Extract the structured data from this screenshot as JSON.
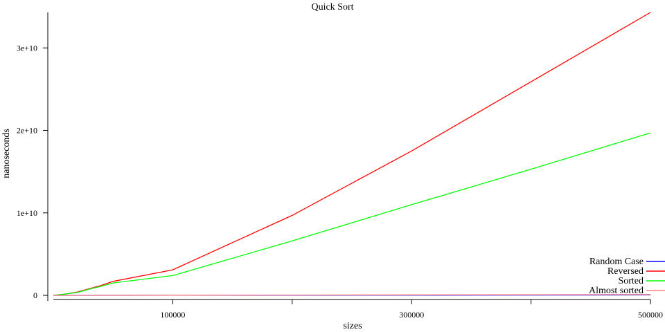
{
  "chart_data": {
    "type": "line",
    "title": "Quick Sort",
    "xlabel": "sizes",
    "ylabel": "nanoseconds",
    "xlim": [
      0,
      500000
    ],
    "ylim": [
      -500000000,
      34300000000
    ],
    "x_ticks": [
      100000,
      300000,
      500000
    ],
    "x_tick_labels": [
      "100000",
      "300000",
      "500000"
    ],
    "x_minor_ticks": [
      200000,
      400000
    ],
    "y_ticks": [
      0,
      10000000000,
      20000000000,
      30000000000
    ],
    "y_tick_labels": [
      "0",
      "1e+10",
      "2e+10",
      "3e+10"
    ],
    "grid": false,
    "legend_position": "bottom-right",
    "x": [
      0,
      10000,
      20000,
      30000,
      40000,
      50000,
      100000,
      200000,
      300000,
      400000,
      500000
    ],
    "series": [
      {
        "name": "Random Case",
        "color": "#0000ff",
        "values": [
          0,
          1000000,
          2000000,
          3000000,
          4000000,
          5000000,
          10000000,
          20000000,
          30000000,
          40000000,
          50000000
        ]
      },
      {
        "name": "Reversed",
        "color": "#ff0000",
        "values": [
          0,
          150000000,
          400000000,
          800000000,
          1200000000,
          1700000000,
          3100000000,
          9700000000,
          17500000000,
          25900000000,
          34300000000
        ]
      },
      {
        "name": "Sorted",
        "color": "#00ff00",
        "values": [
          0,
          150000000,
          350000000,
          750000000,
          1100000000,
          1500000000,
          2400000000,
          6600000000,
          11000000000,
          15300000000,
          19700000000
        ]
      },
      {
        "name": "Almost sorted",
        "color": "#ff8080",
        "values": [
          0,
          2000000,
          4000000,
          6000000,
          8000000,
          10000000,
          20000000,
          40000000,
          60000000,
          80000000,
          100000000
        ]
      }
    ]
  }
}
